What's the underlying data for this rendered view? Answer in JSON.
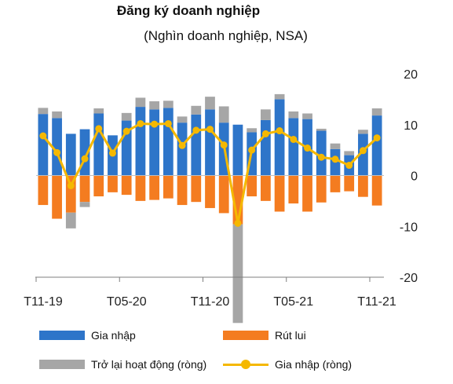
{
  "chart_data": {
    "type": "bar",
    "title": "Đăng ký doanh nghiệp",
    "subtitle": "(Nghìn doanh nghiệp, NSA)",
    "x_tick_labels": [
      "T11-19",
      "T05-20",
      "T11-20",
      "T05-21",
      "T11-21"
    ],
    "ylim": [
      -20,
      20
    ],
    "yticks": [
      20,
      10,
      0,
      -10,
      -20
    ],
    "grid": false,
    "legend_placement": "bottom",
    "categories": [
      "T11-19",
      "T12-19",
      "T01-20",
      "T02-20",
      "T03-20",
      "T04-20",
      "T05-20",
      "T06-20",
      "T07-20",
      "T08-20",
      "T09-20",
      "T10-20",
      "T11-20",
      "T12-20",
      "T01-21",
      "T02-21",
      "T03-21",
      "T04-21",
      "T05-21",
      "T06-21",
      "T07-21",
      "T08-21",
      "T09-21",
      "T10-21",
      "T11-21"
    ],
    "series": [
      {
        "name": "Gia nhập",
        "type": "bar",
        "color": "#2e75c9",
        "values": [
          12.1,
          11.3,
          8.2,
          9.1,
          12.2,
          7.9,
          10.8,
          13.5,
          13.0,
          13.3,
          10.4,
          12.0,
          13.0,
          10.4,
          10.0,
          8.5,
          10.9,
          15.0,
          11.3,
          11.1,
          8.8,
          5.2,
          4.0,
          8.2,
          11.8
        ]
      },
      {
        "name": "Rút lui",
        "type": "bar",
        "color": "#f47c20",
        "values": [
          -5.8,
          -8.5,
          -7.3,
          -5.2,
          -4.1,
          -3.3,
          -3.8,
          -5.0,
          -4.8,
          -4.5,
          -5.8,
          -5.2,
          -6.4,
          -7.4,
          -9.6,
          -4.1,
          -5.0,
          -7.1,
          -5.5,
          -7.1,
          -5.3,
          -3.3,
          -3.1,
          -4.2,
          -5.9
        ]
      },
      {
        "name": "Trở lại hoạt động (ròng)",
        "type": "bar",
        "color": "#a6a6a6",
        "values": [
          1.2,
          1.3,
          -3.1,
          -1.0,
          1.0,
          0,
          1.5,
          1.8,
          1.6,
          1.4,
          1.2,
          1.7,
          2.5,
          3.2,
          -19.4,
          0.8,
          2.1,
          1.0,
          1.3,
          1.1,
          0.4,
          1.1,
          0.8,
          0.8,
          1.4
        ]
      },
      {
        "name": "Gia nhập (ròng)",
        "type": "line",
        "color": "#f5b800",
        "values": [
          7.8,
          4.5,
          -2.0,
          3.3,
          9.2,
          4.4,
          8.7,
          10.2,
          10.1,
          10.2,
          5.9,
          8.9,
          9.1,
          6.0,
          -9.4,
          5.0,
          8.2,
          8.8,
          7.1,
          5.4,
          3.6,
          3.2,
          2.0,
          4.9,
          7.4
        ]
      }
    ]
  }
}
